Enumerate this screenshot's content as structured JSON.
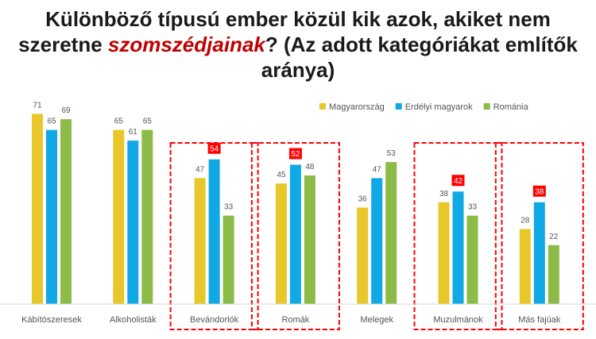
{
  "title": {
    "line1": "Különböző típusú ember közül kik azok, akiket nem",
    "line2_pre": "szeretne ",
    "line2_hl": "szomszédjainak",
    "line2_post": "? (Az adott kategóriákat említők",
    "line3": "aránya)"
  },
  "chart_data": {
    "type": "bar",
    "title": "Különböző típusú ember közül kik azok, akiket nem szeretne szomszédjainak? (Az adott kategóriákat említők aránya)",
    "categories": [
      "Kábítószeresek",
      "Alkoholisták",
      "Bevándorlók",
      "Romák",
      "Melegek",
      "Muzulmánok",
      "Más fajúak"
    ],
    "series": [
      {
        "name": "Magyarország",
        "color": "#e8c72a",
        "values": [
          71,
          65,
          47,
          45,
          36,
          38,
          28
        ]
      },
      {
        "name": "Erdélyi magyarok",
        "color": "#10a9e6",
        "values": [
          65,
          61,
          54,
          52,
          47,
          42,
          38
        ]
      },
      {
        "name": "Románia",
        "color": "#8dbb47",
        "values": [
          69,
          65,
          33,
          48,
          53,
          33,
          22
        ]
      }
    ],
    "highlighted_categories": [
      "Bevándorlók",
      "Romák",
      "Muzulmánok",
      "Más fajúak"
    ],
    "highlight_series": "Erdélyi magyarok",
    "highlight_color": "#ff0000",
    "ylim": [
      0,
      80
    ],
    "xlabel": "",
    "ylabel": "",
    "grid": false,
    "legend_position": "top-right"
  }
}
